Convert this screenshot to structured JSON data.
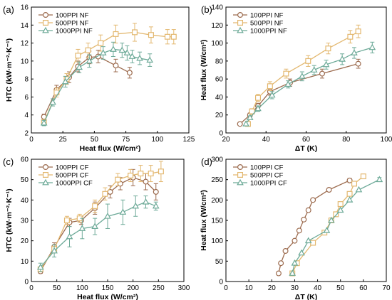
{
  "chart_data": [
    {
      "type": "line",
      "panel_label": "(a)",
      "xlabel": "Heat flux (W/cm²)",
      "ylabel": "HTC (kW·m⁻²·K⁻¹)",
      "xlim": [
        0,
        125
      ],
      "ylim": [
        2,
        16
      ],
      "xticks": [
        0,
        25,
        50,
        75,
        100,
        125
      ],
      "yticks": [
        2,
        4,
        6,
        8,
        10,
        12,
        14,
        16
      ],
      "legend": "top-left",
      "series": [
        {
          "name": "100PPI NF",
          "marker": "circle",
          "color": "#9C6B4E",
          "x": [
            10,
            20,
            30,
            37,
            46,
            53,
            67,
            78
          ],
          "y": [
            3.8,
            6.8,
            8.2,
            9.4,
            10.4,
            10.5,
            9.5,
            8.7
          ],
          "err": [
            0.3,
            0.5,
            0.6,
            0.6,
            0.7,
            0.7,
            0.7,
            0.6
          ]
        },
        {
          "name": "500PPI NF",
          "marker": "square",
          "color": "#E3B870",
          "x": [
            10,
            20,
            28,
            37,
            45,
            55,
            67,
            82,
            95,
            108,
            113
          ],
          "y": [
            3.2,
            6.5,
            8.0,
            10.6,
            11.2,
            12.0,
            13.0,
            13.2,
            12.9,
            12.7,
            12.7
          ],
          "err": [
            0.3,
            0.5,
            0.6,
            0.7,
            0.8,
            0.9,
            1.0,
            1.0,
            0.9,
            0.8,
            0.8
          ]
        },
        {
          "name": "1000PPI NF",
          "marker": "triangle",
          "color": "#6DAA98",
          "x": [
            10,
            17,
            27,
            38,
            46,
            57,
            65,
            72,
            76,
            80,
            86,
            94
          ],
          "y": [
            3.1,
            5.4,
            7.7,
            9.3,
            10.0,
            10.9,
            11.3,
            11.2,
            10.9,
            10.5,
            10.3,
            10.1
          ],
          "err": [
            0.3,
            0.4,
            0.6,
            0.6,
            0.7,
            0.7,
            0.8,
            0.8,
            0.8,
            0.7,
            0.7,
            0.7
          ]
        }
      ]
    },
    {
      "type": "line",
      "panel_label": "(b)",
      "xlabel": "ΔT (K)",
      "ylabel": "Heat flux (W/cm²)",
      "xlim": [
        20,
        100
      ],
      "ylim": [
        0,
        140
      ],
      "xticks": [
        20,
        40,
        60,
        80,
        100
      ],
      "yticks": [
        0,
        20,
        40,
        60,
        80,
        100,
        120,
        140
      ],
      "legend": "top-left",
      "series": [
        {
          "name": "100PPI  NF",
          "marker": "circle",
          "color": "#9C6B4E",
          "x": [
            27,
            32,
            36,
            42,
            52,
            68,
            86
          ],
          "y": [
            10,
            20,
            30,
            46,
            56,
            66,
            77
          ],
          "err": [
            0,
            2,
            3,
            4,
            4,
            5,
            5
          ]
        },
        {
          "name": "500PPI NF",
          "marker": "square",
          "color": "#E3B870",
          "x": [
            31,
            33,
            36,
            42,
            50,
            61,
            71,
            82,
            86
          ],
          "y": [
            10,
            24,
            39,
            52,
            66,
            80,
            94,
            107,
            113
          ],
          "err": [
            0,
            3,
            4,
            5,
            5,
            6,
            6,
            7,
            7
          ]
        },
        {
          "name": "1000PPI NF",
          "marker": "triangle",
          "color": "#6DAA98",
          "x": [
            30,
            32,
            36,
            43,
            51,
            58,
            64,
            70,
            78,
            84,
            93
          ],
          "y": [
            10,
            17,
            27,
            42,
            54,
            63,
            70,
            76,
            82,
            89,
            95
          ],
          "err": [
            0,
            2,
            3,
            4,
            4,
            5,
            5,
            5,
            6,
            6,
            6
          ]
        }
      ]
    },
    {
      "type": "line",
      "panel_label": "(c)",
      "xlabel": "Heat flux (W/cm²)",
      "ylabel": "HTC (kW·m⁻²·K⁻¹)",
      "xlim": [
        0,
        300
      ],
      "ylim": [
        0,
        60
      ],
      "xticks": [
        0,
        50,
        100,
        150,
        200,
        250,
        300
      ],
      "yticks": [
        0,
        10,
        20,
        30,
        40,
        50,
        60
      ],
      "legend": "top-left",
      "series": [
        {
          "name": "100PPI CF",
          "marker": "circle",
          "color": "#9C6B4E",
          "x": [
            18,
            45,
            75,
            98,
            125,
            155,
            175,
            200,
            225,
            245
          ],
          "y": [
            5,
            17,
            29,
            30,
            36,
            44,
            48,
            51,
            49,
            44
          ],
          "err": [
            1,
            2,
            2,
            2,
            3,
            3,
            3,
            4,
            4,
            4
          ]
        },
        {
          "name": "500PPI CF",
          "marker": "square",
          "color": "#E3B870",
          "x": [
            18,
            45,
            70,
            95,
            125,
            145,
            170,
            195,
            215,
            235,
            255
          ],
          "y": [
            6,
            16,
            30,
            31,
            37,
            43,
            50,
            52,
            53,
            53,
            54
          ],
          "err": [
            1,
            2,
            2,
            2,
            3,
            3,
            3,
            3,
            4,
            4,
            5
          ]
        },
        {
          "name": "1000PPI CF",
          "marker": "triangle",
          "color": "#6DAA98",
          "x": [
            18,
            45,
            75,
            100,
            125,
            150,
            180,
            205,
            225,
            245
          ],
          "y": [
            7,
            15,
            22,
            26,
            27,
            32,
            34,
            37,
            39,
            37
          ],
          "err": [
            2,
            3,
            5,
            5,
            4,
            6,
            6,
            5,
            3,
            2
          ]
        }
      ]
    },
    {
      "type": "line",
      "panel_label": "(d)",
      "xlabel": "ΔT (K)",
      "ylabel": "Heat flux (W/cm²)",
      "xlim": [
        0,
        70
      ],
      "ylim": [
        0,
        300
      ],
      "xticks": [
        0,
        10,
        20,
        30,
        40,
        50,
        60,
        70
      ],
      "yticks": [
        0,
        50,
        100,
        150,
        200,
        250,
        300
      ],
      "legend": "top-left",
      "series": [
        {
          "name": "100PPI CF",
          "marker": "circle",
          "color": "#9C6B4E",
          "x": [
            23,
            24,
            26,
            30,
            32,
            34,
            36,
            38,
            45,
            54
          ],
          "y": [
            20,
            45,
            75,
            100,
            125,
            152,
            175,
            200,
            225,
            248
          ],
          "err": [
            0,
            0,
            0,
            0,
            0,
            0,
            0,
            0,
            0,
            5
          ]
        },
        {
          "name": "500PPI CF",
          "marker": "square",
          "color": "#E3B870",
          "x": [
            29,
            31,
            38,
            43,
            46,
            48,
            50,
            54,
            56,
            60
          ],
          "y": [
            20,
            45,
            95,
            120,
            150,
            165,
            190,
            215,
            240,
            258
          ],
          "err": [
            0,
            0,
            0,
            0,
            0,
            0,
            0,
            0,
            0,
            0
          ]
        },
        {
          "name": "1000PPI CF",
          "marker": "triangle",
          "color": "#6DAA98",
          "x": [
            29,
            30,
            33,
            36,
            44,
            46,
            50,
            54,
            58,
            67
          ],
          "y": [
            20,
            45,
            70,
            100,
            125,
            150,
            175,
            200,
            225,
            250
          ],
          "err": [
            0,
            0,
            0,
            0,
            0,
            0,
            0,
            0,
            0,
            5
          ]
        }
      ]
    }
  ]
}
